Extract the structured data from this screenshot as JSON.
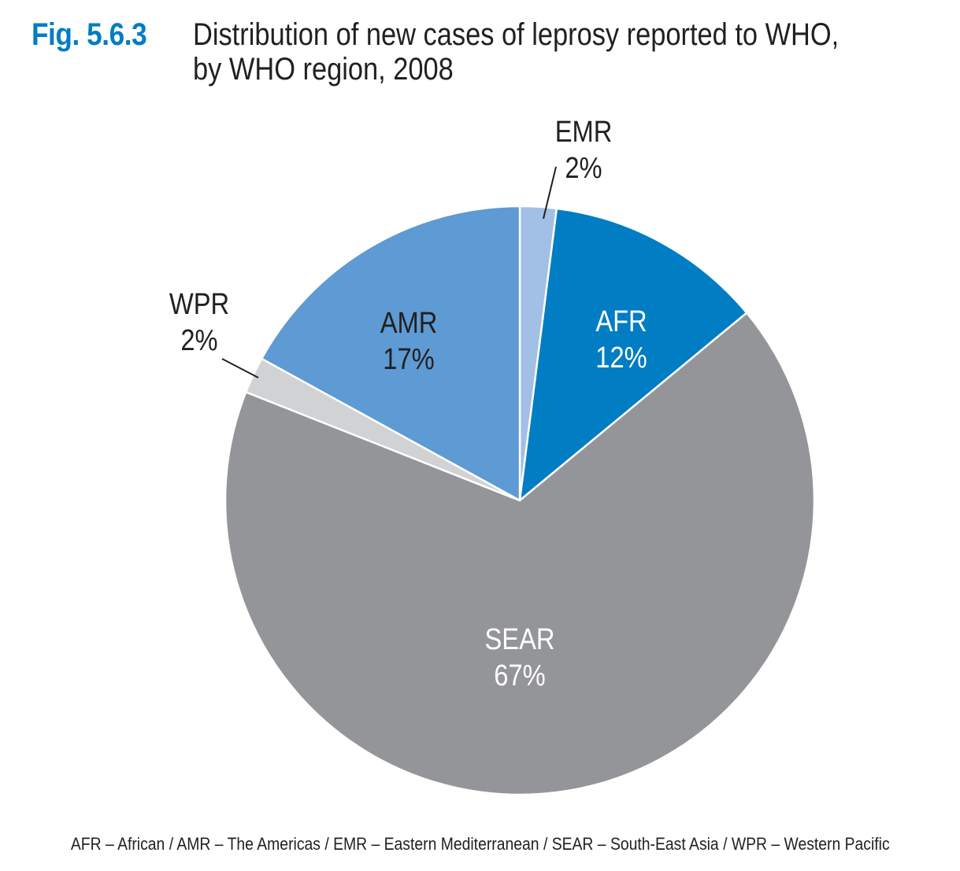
{
  "figure": {
    "number": "Fig. 5.6.3",
    "title_line1": "Distribution of new cases of leprosy reported to WHO,",
    "title_line2": "by WHO region, 2008"
  },
  "chart_data": {
    "type": "pie",
    "slices": [
      {
        "label": "EMR",
        "value": 2,
        "value_label": "2%",
        "color": "#a2bfe5",
        "label_position": "outside",
        "label_color": "#231f20"
      },
      {
        "label": "AFR",
        "value": 12,
        "value_label": "12%",
        "color": "#007dc3",
        "label_position": "inside",
        "label_color": "#ffffff"
      },
      {
        "label": "SEAR",
        "value": 67,
        "value_label": "67%",
        "color": "#949598",
        "label_position": "inside",
        "label_color": "#ffffff"
      },
      {
        "label": "WPR",
        "value": 2,
        "value_label": "2%",
        "color": "#d1d2d4",
        "label_position": "outside",
        "label_color": "#231f20"
      },
      {
        "label": "AMR",
        "value": 17,
        "value_label": "17%",
        "color": "#5e9ad3",
        "label_position": "inside",
        "label_color": "#231f20"
      }
    ],
    "start": "top",
    "direction": "clockwise",
    "legend": "none"
  },
  "footnote": "AFR – African / AMR – The Americas / EMR – Eastern Mediterranean / SEAR – South-East Asia / WPR – Western Pacific"
}
